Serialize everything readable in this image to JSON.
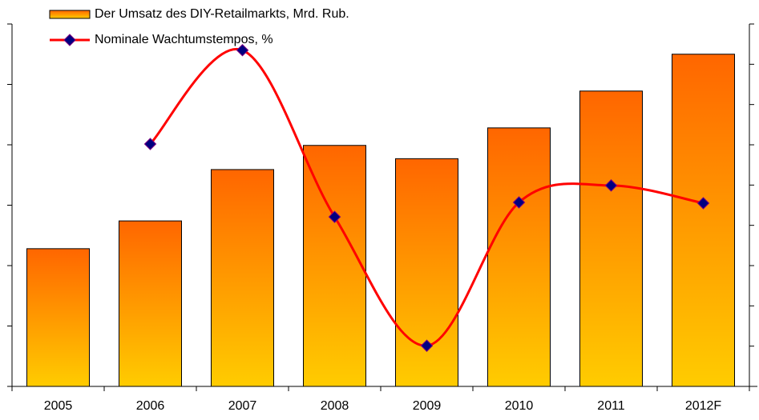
{
  "chart_data": {
    "type": "bar",
    "categories": [
      "2005",
      "2006",
      "2007",
      "2008",
      "2009",
      "2010",
      "2011",
      "2012F"
    ],
    "series": [
      {
        "name": "Der Umsatz des DIY-Retailmarkts, Mrd. Rub.",
        "type": "bar",
        "color": "#ff6600",
        "values": [
          2.28,
          2.74,
          3.59,
          3.99,
          3.77,
          4.28,
          4.89,
          5.5
        ]
      },
      {
        "name": "Nominale Wachtumstempos, %",
        "type": "line",
        "axis": "y2",
        "color": "#ff0000",
        "values": [
          null,
          6.02,
          8.35,
          4.21,
          1.01,
          4.57,
          4.99,
          4.55
        ]
      }
    ],
    "ylim": [
      0,
      6
    ],
    "yticks": [
      0,
      1,
      2,
      3,
      4,
      5,
      6
    ],
    "y2lim": [
      0,
      9
    ],
    "y2ticks": [
      0,
      1,
      2,
      3,
      4,
      5,
      6,
      7,
      8,
      9
    ],
    "grid": false
  }
}
